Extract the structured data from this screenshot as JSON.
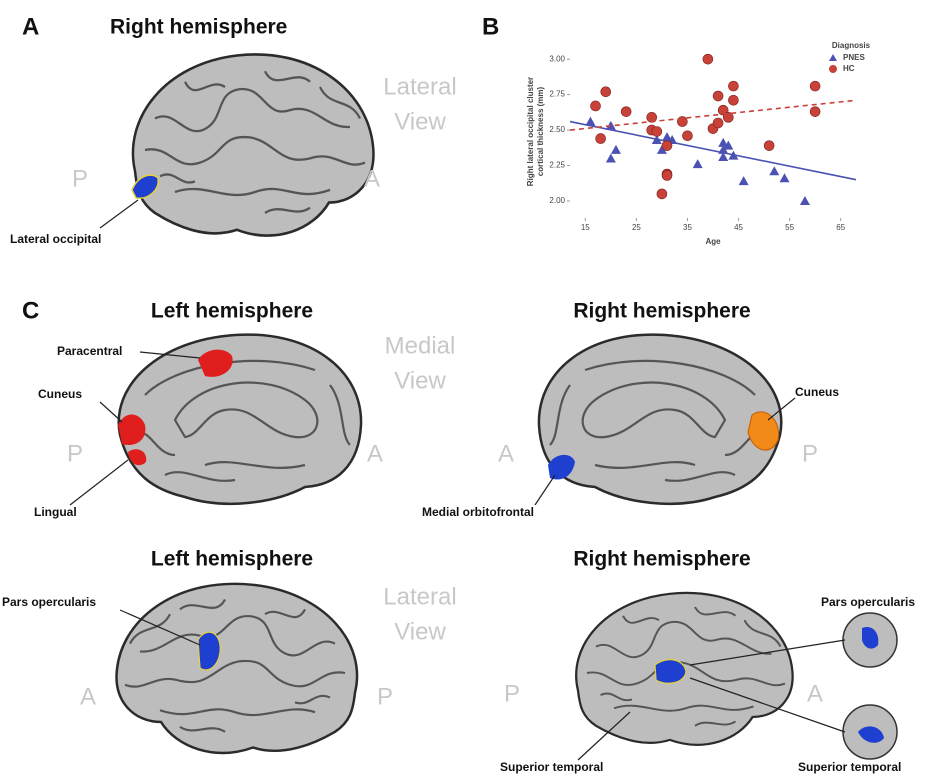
{
  "panel_a": {
    "letter": "A",
    "title": "Right hemisphere",
    "view": [
      "Lateral",
      "View"
    ],
    "orientation": [
      "P",
      "A"
    ],
    "labels": [
      "Lateral occipital"
    ]
  },
  "panel_b": {
    "letter": "B"
  },
  "chart_data": {
    "type": "scatter",
    "xlabel": "Age",
    "ylabel": [
      "Right lateral occipital cluster",
      "cortical thickness (mm)"
    ],
    "xlim": [
      12,
      68
    ],
    "xticks": [
      15,
      25,
      35,
      45,
      55,
      65
    ],
    "ylim": [
      1.88,
      3.1
    ],
    "yticks": [
      {
        "value": 2,
        "label": "2.00"
      },
      {
        "value": 2.25,
        "label": "2.25"
      },
      {
        "value": 2.5,
        "label": "2.50"
      },
      {
        "value": 2.75,
        "label": "2.75"
      },
      {
        "value": 3,
        "label": "3.00"
      }
    ],
    "legend_title": "Diagnosis",
    "legend": "upper right",
    "series": [
      {
        "name": "PNES",
        "color": "#4b52b3",
        "marker": "triangle",
        "line_style": "solid",
        "x": [
          16,
          20,
          20,
          21,
          29,
          31,
          32,
          30,
          37,
          42,
          42,
          43,
          44,
          42,
          46,
          52,
          54,
          58
        ],
        "values": [
          2.56,
          2.53,
          2.3,
          2.36,
          2.43,
          2.45,
          2.43,
          2.36,
          2.26,
          2.36,
          2.41,
          2.39,
          2.32,
          2.31,
          2.14,
          2.21,
          2.16,
          2.0
        ],
        "trend": {
          "x": [
            12,
            68
          ],
          "values": [
            2.56,
            2.15
          ]
        }
      },
      {
        "name": "HC",
        "color": "#c8423a",
        "marker": "circle",
        "line_style": "dashed",
        "x": [
          17,
          19,
          18,
          23,
          28,
          28,
          29,
          31,
          30,
          31,
          31,
          34,
          35,
          39,
          41,
          42,
          40,
          41,
          44,
          44,
          43,
          51,
          60,
          60
        ],
        "values": [
          2.67,
          2.77,
          2.44,
          2.63,
          2.59,
          2.5,
          2.49,
          2.39,
          2.05,
          2.19,
          2.18,
          2.56,
          2.46,
          3.0,
          2.74,
          2.64,
          2.51,
          2.55,
          2.81,
          2.71,
          2.59,
          2.39,
          2.81,
          2.63
        ],
        "trend": {
          "x": [
            12,
            68
          ],
          "values": [
            2.5,
            2.71
          ]
        }
      }
    ]
  },
  "panel_c": {
    "letter": "C",
    "rows": [
      {
        "view": [
          "Medial",
          "View"
        ],
        "brains": [
          {
            "title": "Left hemisphere",
            "orientation": [
              "P",
              "A"
            ],
            "labels": [
              "Paracentral",
              "Cuneus",
              "Lingual"
            ]
          },
          {
            "title": "Right hemisphere",
            "orientation": [
              "A",
              "P"
            ],
            "labels": [
              "Cuneus",
              "Medial orbitofrontal"
            ]
          }
        ]
      },
      {
        "view": [
          "Lateral",
          "View"
        ],
        "brains": [
          {
            "title": "Left hemisphere",
            "orientation": [
              "A",
              "P"
            ],
            "labels": [
              "Pars opercularis"
            ]
          },
          {
            "title": "Right hemisphere",
            "orientation": [
              "P",
              "A"
            ],
            "labels": [
              "Pars opercularis",
              "Superior temporal",
              "Superior temporal"
            ]
          }
        ]
      }
    ]
  }
}
